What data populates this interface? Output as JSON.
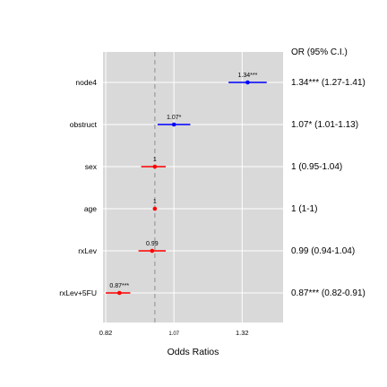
{
  "chart_data": {
    "type": "forest",
    "xlabel": "Odds Ratios",
    "table_header": "OR (95% C.I.)",
    "x_ticks": [
      {
        "value": 0.82,
        "label": "0.82"
      },
      {
        "value": 1.07,
        "label": "1.07"
      },
      {
        "value": 1.32,
        "label": "1.32"
      }
    ],
    "xlim": [
      0.81,
      1.47
    ],
    "reference_value": 1,
    "grid": true,
    "colors": {
      "above_one": "#0000ff",
      "below_or_equal_one": "#ff0000",
      "panel": "#d9d9d9",
      "grid": "#ffffff",
      "reference": "#999999"
    },
    "rows": [
      {
        "term": "node4",
        "or": 1.34,
        "lo": 1.27,
        "hi": 1.41,
        "label": "1.34***",
        "ci_text": "1.34*** (1.27-1.41)"
      },
      {
        "term": "obstruct",
        "or": 1.07,
        "lo": 1.01,
        "hi": 1.13,
        "label": "1.07*",
        "ci_text": "1.07* (1.01-1.13)"
      },
      {
        "term": "sex",
        "or": 1.0,
        "lo": 0.95,
        "hi": 1.04,
        "label": "1",
        "ci_text": "1 (0.95-1.04)"
      },
      {
        "term": "age",
        "or": 1.0,
        "lo": 1.0,
        "hi": 1.0,
        "label": "1",
        "ci_text": "1 (1-1)"
      },
      {
        "term": "rxLev",
        "or": 0.99,
        "lo": 0.94,
        "hi": 1.04,
        "label": "0.99",
        "ci_text": "0.99 (0.94-1.04)"
      },
      {
        "term": "rxLev+5FU",
        "or": 0.87,
        "lo": 0.82,
        "hi": 0.91,
        "label": "0.87***",
        "ci_text": "0.87*** (0.82-0.91)"
      }
    ]
  }
}
